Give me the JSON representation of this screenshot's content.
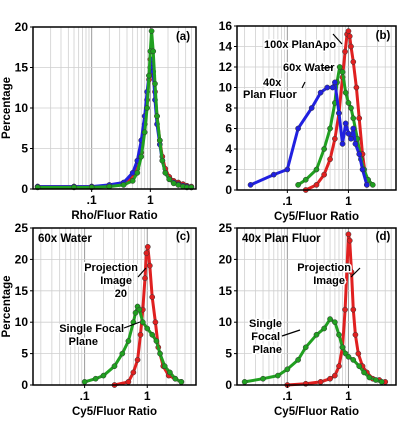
{
  "chart_data": [
    {
      "type": "line",
      "panel_label": "(a)",
      "xlabel": "Rho/Fluor Ratio",
      "ylabel": "Percentage",
      "xscale": "log",
      "xlim": [
        0.01,
        6
      ],
      "ylim": [
        0,
        20
      ],
      "xticks": [
        0.1,
        1
      ],
      "xtick_labels": [
        ".1",
        "1"
      ],
      "yticks": [
        0,
        5,
        10,
        15,
        20
      ],
      "grid": true,
      "series": [
        {
          "color": "#e02020",
          "x": [
            0.012,
            0.05,
            0.1,
            0.2,
            0.35,
            0.5,
            0.6,
            0.7,
            0.8,
            0.88,
            0.95,
            1.0,
            1.05,
            1.12,
            1.2,
            1.3,
            1.45,
            1.6,
            1.8,
            2.1,
            2.5,
            3.0,
            3.6,
            4.2,
            5.0
          ],
          "y": [
            0.3,
            0.3,
            0.3,
            0.4,
            0.6,
            1.5,
            2.5,
            4.5,
            8,
            11,
            13.5,
            16,
            15.5,
            14,
            12,
            9,
            6,
            4,
            2.5,
            1.5,
            1,
            0.8,
            0.6,
            0.4,
            0.3
          ]
        },
        {
          "color": "#2020e0",
          "x": [
            0.012,
            0.05,
            0.1,
            0.2,
            0.35,
            0.5,
            0.6,
            0.7,
            0.8,
            0.88,
            0.95,
            1.0,
            1.05,
            1.12,
            1.2,
            1.3,
            1.45,
            1.6,
            1.8,
            2.1,
            2.5,
            3.0,
            3.6,
            4.2,
            5.0
          ],
          "y": [
            0.3,
            0.3,
            0.3,
            0.5,
            0.8,
            2,
            3.5,
            6,
            9,
            12,
            14,
            15,
            16,
            14.5,
            11,
            8,
            5.5,
            3.5,
            2,
            1.2,
            0.8,
            0.6,
            0.4,
            0.3,
            0.2
          ]
        },
        {
          "color": "#20a020",
          "x": [
            0.012,
            0.05,
            0.1,
            0.2,
            0.35,
            0.5,
            0.6,
            0.7,
            0.8,
            0.88,
            0.95,
            1.0,
            1.05,
            1.12,
            1.2,
            1.3,
            1.45,
            1.6,
            1.8,
            2.1,
            2.5,
            3.0,
            3.6,
            4.2,
            5.0
          ],
          "y": [
            0.2,
            0.2,
            0.2,
            0.3,
            0.5,
            1,
            2,
            4,
            7,
            10,
            14,
            17,
            19.5,
            17,
            13,
            9,
            6,
            3.5,
            2,
            1.2,
            0.7,
            0.5,
            0.3,
            0.2,
            0.2
          ]
        }
      ],
      "annotations": []
    },
    {
      "type": "line",
      "panel_label": "(b)",
      "xlabel": "Cy5/Fluor Ratio",
      "ylabel": "",
      "xscale": "log",
      "xlim": [
        0.015,
        6
      ],
      "ylim": [
        0,
        16
      ],
      "xticks": [
        0.1,
        1
      ],
      "xtick_labels": [
        ".1",
        "1"
      ],
      "yticks": [
        0,
        2,
        4,
        6,
        8,
        10,
        12,
        14,
        16
      ],
      "grid": true,
      "series": [
        {
          "color": "#e02020",
          "x": [
            0.2,
            0.3,
            0.4,
            0.5,
            0.6,
            0.7,
            0.8,
            0.88,
            0.95,
            1.0,
            1.05,
            1.1,
            1.2,
            1.35,
            1.5,
            1.7,
            2.0
          ],
          "y": [
            0,
            0.5,
            1.5,
            3,
            5,
            7.5,
            11,
            13.5,
            15.2,
            15.5,
            15,
            14,
            12.5,
            10,
            7,
            3.5,
            0.5
          ]
        },
        {
          "color": "#20a020",
          "x": [
            0.15,
            0.2,
            0.3,
            0.4,
            0.5,
            0.6,
            0.65,
            0.72,
            0.8,
            0.9,
            1.0,
            1.1,
            1.2,
            1.4,
            1.6,
            1.8,
            2.1,
            2.5
          ],
          "y": [
            0.5,
            1,
            2,
            4,
            6,
            8.5,
            10.5,
            12,
            11.5,
            9.5,
            8.5,
            8,
            7,
            5,
            3,
            2,
            1,
            0.5
          ]
        },
        {
          "color": "#2020e0",
          "x": [
            0.025,
            0.06,
            0.1,
            0.15,
            0.25,
            0.35,
            0.45,
            0.55,
            0.6,
            0.7,
            0.8,
            0.9,
            1.0,
            1.1,
            1.2,
            1.3,
            1.5,
            1.7,
            2.0
          ],
          "y": [
            0.5,
            1.5,
            2,
            6,
            8,
            9.5,
            10,
            10,
            10.5,
            7.5,
            4.5,
            6.5,
            5.5,
            5,
            6,
            4.5,
            3.5,
            2,
            0.5
          ]
        }
      ],
      "annotations": [
        "100x PlanApo",
        "60x Water",
        "40x",
        "Plan Fluor"
      ]
    },
    {
      "type": "line",
      "panel_label": "(c)",
      "title": "60x Water",
      "xlabel": "Cy5/Fluor Ratio",
      "ylabel": "Percentage",
      "xscale": "log",
      "xlim": [
        0.015,
        6
      ],
      "ylim": [
        0,
        25
      ],
      "xticks": [
        0.1,
        1
      ],
      "xtick_labels": [
        ".1",
        "1"
      ],
      "yticks": [
        0,
        5,
        10,
        15,
        20,
        25
      ],
      "grid": true,
      "series": [
        {
          "color": "#e02020",
          "x": [
            0.3,
            0.5,
            0.6,
            0.7,
            0.78,
            0.85,
            0.92,
            0.97,
            1.02,
            1.1,
            1.2,
            1.35,
            1.5,
            1.8,
            2.2,
            2.8,
            3.5
          ],
          "y": [
            0,
            0.5,
            2,
            4,
            8,
            12,
            17,
            21,
            22,
            19,
            14,
            10,
            6,
            3,
            1.5,
            1,
            0.5
          ]
        },
        {
          "color": "#20a020",
          "x": [
            0.1,
            0.15,
            0.2,
            0.3,
            0.4,
            0.5,
            0.6,
            0.65,
            0.7,
            0.75,
            0.85,
            1.0,
            1.2,
            1.4,
            1.6,
            1.9,
            2.3,
            2.8,
            3.5
          ],
          "y": [
            0.5,
            1,
            1.5,
            3,
            5,
            7,
            10,
            11.5,
            12.5,
            12,
            10,
            9,
            8,
            7,
            5,
            3,
            2,
            1,
            0.5
          ]
        }
      ],
      "annotations": [
        "Projection",
        "Image",
        "20",
        "Single Focal",
        "Plane"
      ]
    },
    {
      "type": "line",
      "panel_label": "(d)",
      "title": "40x Plan Fluor",
      "xlabel": "Cy5/Fluor Ratio",
      "ylabel": "",
      "xscale": "log",
      "xlim": [
        0.015,
        6
      ],
      "ylim": [
        0,
        25
      ],
      "xticks": [
        0.1,
        1
      ],
      "xtick_labels": [
        ".1",
        "1"
      ],
      "yticks": [
        0,
        5,
        10,
        15,
        20,
        25
      ],
      "grid": true,
      "series": [
        {
          "color": "#e02020",
          "x": [
            0.1,
            0.2,
            0.35,
            0.5,
            0.6,
            0.7,
            0.8,
            0.88,
            0.95,
            1.0,
            1.05,
            1.12,
            1.2,
            1.3,
            1.45,
            1.7,
            2.0,
            2.5,
            3.2,
            4.0
          ],
          "y": [
            0,
            0.2,
            0.5,
            1,
            1.5,
            3,
            6,
            12,
            19,
            24,
            23,
            18,
            12,
            8,
            5,
            3,
            2,
            1,
            0.8,
            0.5
          ]
        },
        {
          "color": "#20a020",
          "x": [
            0.02,
            0.04,
            0.07,
            0.1,
            0.15,
            0.2,
            0.3,
            0.4,
            0.5,
            0.6,
            0.7,
            0.8,
            0.9,
            1.0,
            1.2,
            1.5,
            1.8,
            2.2,
            2.8,
            3.5
          ],
          "y": [
            0.5,
            1,
            1.5,
            2.5,
            4,
            6,
            8,
            9,
            10.5,
            10,
            8,
            6,
            5,
            4.5,
            4,
            3,
            2,
            1.2,
            0.8,
            0.5
          ]
        }
      ],
      "annotations": [
        "Projection",
        "Image",
        "Single",
        "Focal",
        "Plane"
      ]
    }
  ]
}
